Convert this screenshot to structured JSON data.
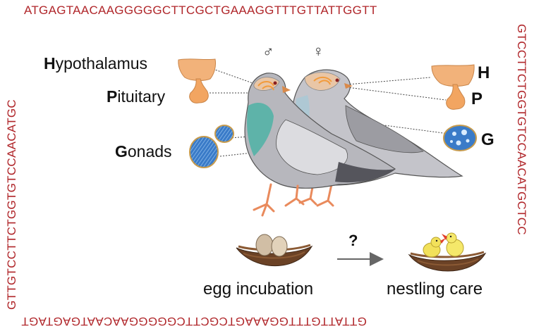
{
  "dna_border": {
    "top": "ATGAGTAACAAGGGGGCTTCGCTGAAAGGTTTGTTATTGGTT",
    "right": "GTCCTTCTGGTGTCCAACATGCTCC",
    "bottom": "GTTATTGTTTGGAAAGTCGCTTCGGGGGAACAATGAGTAGT",
    "left": "GTTGTCCTTCTGGTGTCCAACATGC"
  },
  "left_labels": {
    "hypothalamus_initial": "H",
    "hypothalamus_rest": "ypothalamus",
    "pituitary_initial": "P",
    "pituitary_rest": "ituitary",
    "gonads_initial": "G",
    "gonads_rest": "onads"
  },
  "right_labels": {
    "h": "H",
    "p": "P",
    "g": "G"
  },
  "sex_symbols": {
    "male": "♂",
    "female": "♀"
  },
  "transition": {
    "question": "?",
    "from": "egg incubation",
    "to": "nestling care"
  },
  "colors": {
    "dna_red": "#b0262a",
    "organ_orange": "#f2b27a",
    "gonad_blue": "#3a7bc8",
    "pigeon_gray": "#b9b9bf",
    "nest_brown": "#6b4226"
  }
}
